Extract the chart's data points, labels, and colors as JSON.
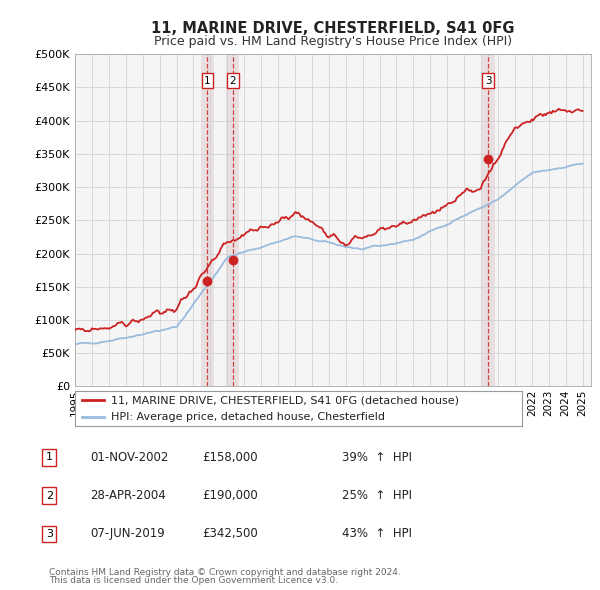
{
  "title": "11, MARINE DRIVE, CHESTERFIELD, S41 0FG",
  "subtitle": "Price paid vs. HM Land Registry's House Price Index (HPI)",
  "hpi_color": "#99bbdd",
  "price_color": "#cc2222",
  "vline_color": "#cc2222",
  "shade_color": "#ddcccc",
  "ylim": [
    0,
    500000
  ],
  "yticks": [
    0,
    50000,
    100000,
    150000,
    200000,
    250000,
    300000,
    350000,
    400000,
    450000,
    500000
  ],
  "ytick_labels": [
    "£0",
    "£50K",
    "£100K",
    "£150K",
    "£200K",
    "£250K",
    "£300K",
    "£350K",
    "£400K",
    "£450K",
    "£500K"
  ],
  "xlim": [
    1995,
    2025.5
  ],
  "xticks": [
    1995,
    1996,
    1997,
    1998,
    1999,
    2000,
    2001,
    2002,
    2003,
    2004,
    2005,
    2006,
    2007,
    2008,
    2009,
    2010,
    2011,
    2012,
    2013,
    2014,
    2015,
    2016,
    2017,
    2018,
    2019,
    2020,
    2021,
    2022,
    2023,
    2024,
    2025
  ],
  "transactions": [
    {
      "label": "1",
      "date_str": "01-NOV-2002",
      "price": 158000,
      "pct": "39%",
      "direction": "↑",
      "x_year": 2002.83
    },
    {
      "label": "2",
      "date_str": "28-APR-2004",
      "price": 190000,
      "pct": "25%",
      "direction": "↑",
      "x_year": 2004.32
    },
    {
      "label": "3",
      "date_str": "07-JUN-2019",
      "price": 342500,
      "pct": "43%",
      "direction": "↑",
      "x_year": 2019.43
    }
  ],
  "legend_line1": "11, MARINE DRIVE, CHESTERFIELD, S41 0FG (detached house)",
  "legend_line2": "HPI: Average price, detached house, Chesterfield",
  "footer1": "Contains HM Land Registry data © Crown copyright and database right 2024.",
  "footer2": "This data is licensed under the Open Government Licence v3.0.",
  "background_color": "#ffffff",
  "plot_bg_color": "#f5f5f5"
}
